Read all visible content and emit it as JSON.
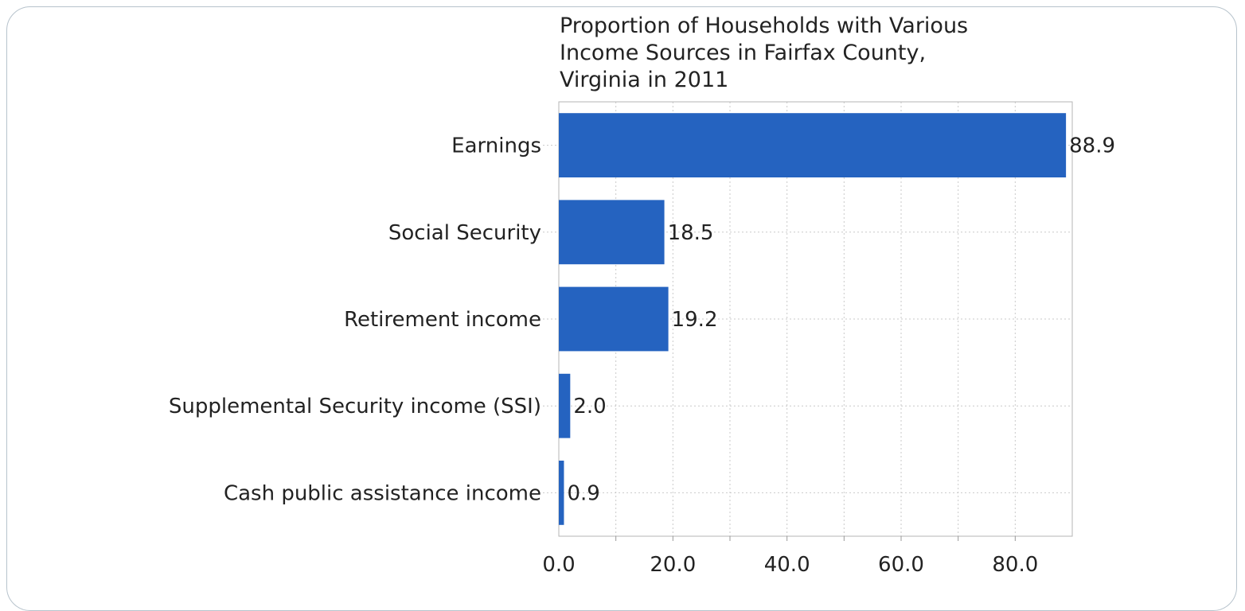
{
  "chart_data": {
    "type": "bar",
    "orientation": "horizontal",
    "title_lines": [
      "Proportion of Households with Various",
      "Income Sources in Fairfax County,",
      "Virginia in 2011"
    ],
    "categories": [
      "Earnings",
      "Social Security",
      "Retirement income",
      "Supplemental Security income (SSI)",
      "Cash public assistance income"
    ],
    "values": [
      88.9,
      18.5,
      19.2,
      2.0,
      0.9
    ],
    "value_labels": [
      "88.9",
      "18.5",
      "19.2",
      "2.0",
      "0.9"
    ],
    "xlim": [
      0,
      90
    ],
    "xticks": [
      0,
      20,
      40,
      60,
      80
    ],
    "xtick_labels": [
      "0.0",
      "20.0",
      "40.0",
      "60.0",
      "80.0"
    ],
    "xlabel": "",
    "ylabel": "",
    "grid": true,
    "legend": "none",
    "bar_color": "#2563c0"
  }
}
